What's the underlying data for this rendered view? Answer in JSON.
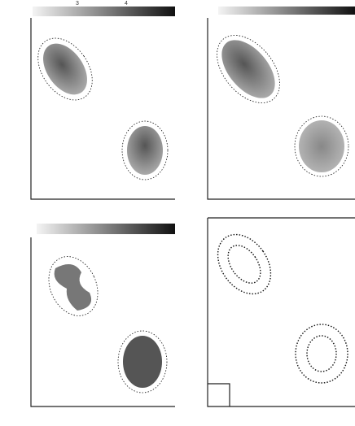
{
  "panels": [
    {
      "colorbar_ticks": [
        "3",
        "4"
      ]
    }
  ]
}
